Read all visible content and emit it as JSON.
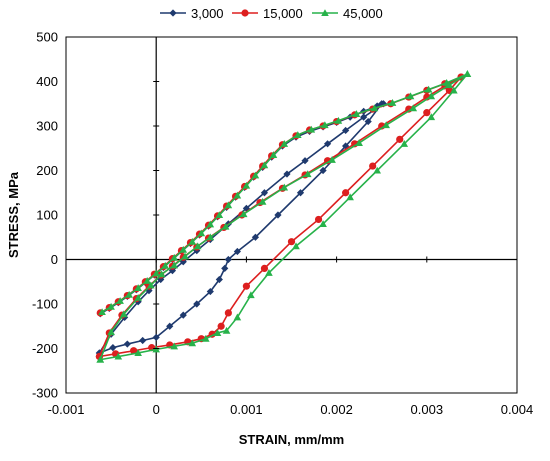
{
  "chart_data": {
    "type": "line",
    "title": "",
    "xlabel": "STRAIN, mm/mm",
    "ylabel": "STRESS, MPa",
    "xlim": [
      -0.001,
      0.004
    ],
    "ylim": [
      -300,
      500
    ],
    "x_ticks": [
      -0.001,
      0,
      0.001,
      0.002,
      0.003,
      0.004
    ],
    "x_tick_labels": [
      "-0.001",
      "0",
      "0.001",
      "0.002",
      "0.003",
      "0.004"
    ],
    "y_ticks": [
      -300,
      -200,
      -100,
      0,
      100,
      200,
      300,
      400,
      500
    ],
    "y_tick_labels": [
      "-300",
      "-200",
      "-100",
      "0",
      "100",
      "200",
      "300",
      "400",
      "500"
    ],
    "grid": false,
    "legend_position": "top",
    "series": [
      {
        "name": "3,000",
        "color": "#1F3A6E",
        "marker": "diamond",
        "x": [
          -0.00062,
          -0.00052,
          -0.00042,
          -0.00032,
          -0.00022,
          -0.00012,
          -2e-05,
          8e-05,
          0.00018,
          0.00028,
          0.00038,
          0.00048,
          0.00058,
          0.00068,
          0.00078,
          0.00088,
          0.00098,
          0.00108,
          0.00118,
          0.00128,
          0.0014,
          0.00155,
          0.0017,
          0.00185,
          0.002,
          0.00215,
          0.0023,
          0.00245,
          0.00252,
          0.0023,
          0.0021,
          0.0019,
          0.00165,
          0.00145,
          0.0012,
          0.001,
          0.0008,
          0.0006,
          0.00045,
          0.0003,
          0.00018,
          5e-05,
          -8e-05,
          -0.0002,
          -0.00035,
          -0.0005,
          -0.00063,
          -0.00063,
          -0.00048,
          -0.00032,
          -0.00015,
          0.0,
          0.00015,
          0.0003,
          0.00045,
          0.0006,
          0.0007,
          0.00076,
          0.0008,
          0.0009,
          0.0011,
          0.00135,
          0.0016,
          0.00185,
          0.0021,
          0.00235,
          0.0025
        ],
        "y": [
          -122,
          -110,
          -97,
          -83,
          -68,
          -52,
          -35,
          -18,
          0,
          18,
          36,
          55,
          75,
          96,
          117,
          140,
          162,
          185,
          207,
          230,
          255,
          275,
          288,
          298,
          308,
          320,
          333,
          345,
          350,
          320,
          290,
          260,
          222,
          192,
          150,
          115,
          80,
          45,
          20,
          -5,
          -25,
          -45,
          -70,
          -95,
          -130,
          -168,
          -210,
          -210,
          -198,
          -190,
          -182,
          -175,
          -150,
          -125,
          -100,
          -72,
          -45,
          -20,
          0,
          18,
          50,
          100,
          150,
          200,
          255,
          310,
          350
        ]
      },
      {
        "name": "15,000",
        "color": "#DD1F1F",
        "marker": "circle",
        "x": [
          -0.00062,
          -0.00052,
          -0.00042,
          -0.00032,
          -0.00022,
          -0.00012,
          -2e-05,
          8e-05,
          0.00018,
          0.00028,
          0.00038,
          0.00048,
          0.00058,
          0.00068,
          0.00078,
          0.00088,
          0.00098,
          0.00108,
          0.00118,
          0.00128,
          0.0014,
          0.00155,
          0.0017,
          0.00185,
          0.002,
          0.0022,
          0.0024,
          0.0026,
          0.0028,
          0.003,
          0.0032,
          0.00338,
          0.0032,
          0.003,
          0.0028,
          0.0025,
          0.0022,
          0.0019,
          0.00165,
          0.0014,
          0.00115,
          0.00095,
          0.00075,
          0.00058,
          0.00045,
          0.0003,
          0.00018,
          5e-05,
          -8e-05,
          -0.00022,
          -0.00038,
          -0.00052,
          -0.00063,
          -0.00063,
          -0.00045,
          -0.00025,
          -5e-05,
          0.00015,
          0.00035,
          0.0005,
          0.00062,
          0.00072,
          0.0008,
          0.001,
          0.0012,
          0.0015,
          0.0018,
          0.0021,
          0.0024,
          0.0027,
          0.003,
          0.00325,
          0.00338
        ],
        "y": [
          -120,
          -108,
          -95,
          -81,
          -66,
          -50,
          -33,
          -16,
          2,
          20,
          38,
          57,
          77,
          98,
          120,
          142,
          164,
          187,
          210,
          233,
          258,
          278,
          291,
          300,
          310,
          325,
          338,
          350,
          365,
          380,
          395,
          410,
          390,
          365,
          338,
          300,
          260,
          222,
          190,
          160,
          128,
          100,
          72,
          48,
          28,
          5,
          -15,
          -35,
          -60,
          -88,
          -125,
          -165,
          -218,
          -218,
          -212,
          -205,
          -198,
          -192,
          -185,
          -178,
          -168,
          -150,
          -120,
          -60,
          -20,
          40,
          90,
          150,
          210,
          270,
          330,
          380,
          410
        ]
      },
      {
        "name": "45,000",
        "color": "#27B24A",
        "marker": "triangle",
        "x": [
          -0.0006,
          -0.0005,
          -0.0004,
          -0.0003,
          -0.0002,
          -0.0001,
          0.0,
          0.0001,
          0.0002,
          0.0003,
          0.0004,
          0.0005,
          0.0006,
          0.0007,
          0.0008,
          0.0009,
          0.001,
          0.0011,
          0.0012,
          0.0013,
          0.00142,
          0.00157,
          0.00172,
          0.00187,
          0.00202,
          0.00222,
          0.00242,
          0.00262,
          0.00282,
          0.00302,
          0.00322,
          0.00345,
          0.00325,
          0.00305,
          0.00285,
          0.00255,
          0.00225,
          0.00195,
          0.00168,
          0.00142,
          0.00118,
          0.00097,
          0.00077,
          0.0006,
          0.00046,
          0.00032,
          0.0002,
          6e-05,
          -6e-05,
          -0.0002,
          -0.00036,
          -0.0005,
          -0.00062,
          -0.00062,
          -0.00042,
          -0.0002,
          0.0,
          0.0002,
          0.0004,
          0.00055,
          0.00068,
          0.00078,
          0.0009,
          0.00105,
          0.00125,
          0.00155,
          0.00185,
          0.00215,
          0.00245,
          0.00275,
          0.00305,
          0.0033,
          0.00345
        ],
        "y": [
          -118,
          -106,
          -93,
          -79,
          -64,
          -48,
          -31,
          -14,
          4,
          22,
          40,
          59,
          79,
          100,
          122,
          144,
          166,
          189,
          212,
          235,
          260,
          280,
          292,
          302,
          312,
          327,
          340,
          352,
          367,
          382,
          397,
          417,
          392,
          367,
          340,
          302,
          262,
          224,
          192,
          162,
          130,
          102,
          74,
          50,
          30,
          7,
          -13,
          -33,
          -58,
          -86,
          -123,
          -163,
          -225,
          -225,
          -218,
          -210,
          -202,
          -195,
          -188,
          -178,
          -165,
          -160,
          -130,
          -80,
          -30,
          30,
          80,
          140,
          200,
          260,
          320,
          380,
          417
        ]
      }
    ]
  }
}
